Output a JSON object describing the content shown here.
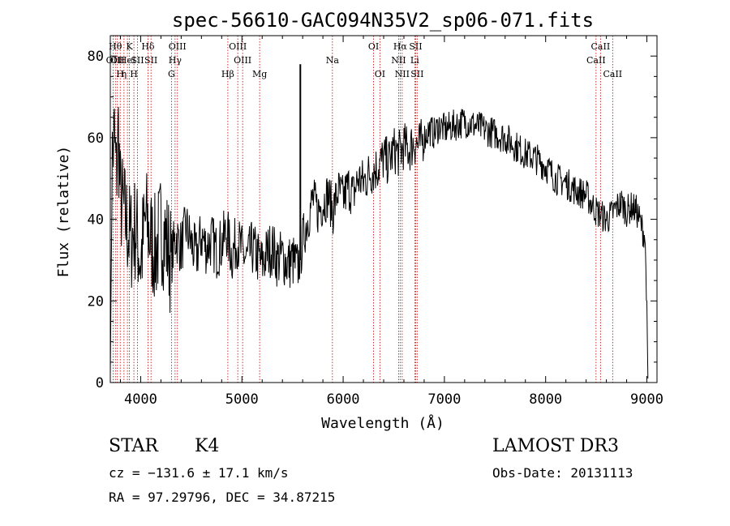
{
  "chart_data": {
    "type": "line",
    "title": "spec-56610-GAC094N35V2_sp06-071.fits",
    "xlabel": "Wavelength (Å)",
    "ylabel": "Flux (relative)",
    "xlim": [
      3700,
      9100
    ],
    "ylim": [
      0,
      85
    ],
    "xticks": [
      4000,
      5000,
      6000,
      7000,
      8000,
      9000
    ],
    "xtick_labels": [
      "4000",
      "5000",
      "6000",
      "7000",
      "8000",
      "9000"
    ],
    "yticks": [
      0,
      20,
      40,
      60,
      80
    ],
    "ytick_labels": [
      "0",
      "20",
      "40",
      "60",
      "80"
    ],
    "series": [
      {
        "name": "spectrum",
        "x": [
          3700,
          3720,
          3740,
          3760,
          3780,
          3800,
          3850,
          3900,
          3950,
          4000,
          4050,
          4100,
          4150,
          4200,
          4250,
          4300,
          4350,
          4400,
          4450,
          4500,
          4550,
          4600,
          4650,
          4700,
          4750,
          4800,
          4850,
          4900,
          4950,
          5000,
          5050,
          5100,
          5150,
          5200,
          5250,
          5300,
          5350,
          5400,
          5450,
          5500,
          5550,
          5600,
          5650,
          5700,
          5750,
          5800,
          5850,
          5900,
          5950,
          6000,
          6050,
          6100,
          6150,
          6200,
          6250,
          6300,
          6350,
          6400,
          6450,
          6500,
          6550,
          6600,
          6650,
          6700,
          6750,
          6800,
          6850,
          6900,
          6950,
          7000,
          7100,
          7200,
          7300,
          7400,
          7500,
          7600,
          7700,
          7800,
          7900,
          8000,
          8100,
          8200,
          8300,
          8400,
          8450,
          8500,
          8550,
          8600,
          8650,
          8700,
          8750,
          8800,
          8850,
          8900,
          8950,
          8980,
          9000,
          9010
        ],
        "values": [
          2,
          55,
          60,
          50,
          62,
          45,
          40,
          35,
          38,
          30,
          40,
          35,
          32,
          38,
          35,
          30,
          36,
          33,
          38,
          34,
          31,
          36,
          33,
          35,
          32,
          34,
          37,
          31,
          35,
          32,
          30,
          33,
          31,
          29,
          32,
          33,
          30,
          31,
          29,
          30,
          28,
          35,
          40,
          45,
          42,
          44,
          46,
          42,
          47,
          45,
          48,
          46,
          50,
          49,
          51,
          52,
          53,
          55,
          54,
          57,
          56,
          58,
          57,
          59,
          58,
          60,
          62,
          61,
          63,
          62,
          63,
          64,
          63,
          62,
          61,
          60,
          58,
          56,
          55,
          53,
          50,
          49,
          47,
          46,
          44,
          42,
          41,
          40,
          41,
          43,
          44,
          42,
          43,
          42,
          38,
          36,
          20,
          1
        ]
      }
    ],
    "annotations": [
      {
        "x": 5577,
        "y_top": 78,
        "y_bottom": 30,
        "label": ""
      }
    ],
    "line_markers": [
      {
        "wavelength": 3728,
        "label": "OII",
        "row": 2
      },
      {
        "wavelength": 3750,
        "label": "Hθ",
        "row": 1
      },
      {
        "wavelength": 3770,
        "label": "OII",
        "row": 2
      },
      {
        "wavelength": 3798,
        "label": "H",
        "row": 3
      },
      {
        "wavelength": 3835,
        "label": "η",
        "row": 3
      },
      {
        "wavelength": 3869,
        "label": "HeI",
        "row": 2
      },
      {
        "wavelength": 3889,
        "label": "K",
        "row": 1
      },
      {
        "wavelength": 3933,
        "label": "H",
        "row": 3
      },
      {
        "wavelength": 3968,
        "label": "SII",
        "row": 2
      },
      {
        "wavelength": 4072,
        "label": "Hδ",
        "row": 1
      },
      {
        "wavelength": 4102,
        "label": "SII",
        "row": 2
      },
      {
        "wavelength": 4304,
        "label": "G",
        "row": 3
      },
      {
        "wavelength": 4340,
        "label": "Hγ",
        "row": 2
      },
      {
        "wavelength": 4363,
        "label": "OIII",
        "row": 1
      },
      {
        "wavelength": 4861,
        "label": "Hβ",
        "row": 3
      },
      {
        "wavelength": 4959,
        "label": "OIII",
        "row": 1
      },
      {
        "wavelength": 5007,
        "label": "OIII",
        "row": 2
      },
      {
        "wavelength": 5175,
        "label": "Mg",
        "row": 3
      },
      {
        "wavelength": 5894,
        "label": "Na",
        "row": 2
      },
      {
        "wavelength": 6300,
        "label": "OI",
        "row": 1
      },
      {
        "wavelength": 6363,
        "label": "OI",
        "row": 3
      },
      {
        "wavelength": 6548,
        "label": "NII",
        "row": 2
      },
      {
        "wavelength": 6563,
        "label": "Hα",
        "row": 1
      },
      {
        "wavelength": 6583,
        "label": "NII",
        "row": 3
      },
      {
        "wavelength": 6707,
        "label": "Li",
        "row": 2
      },
      {
        "wavelength": 6716,
        "label": "SII",
        "row": 1
      },
      {
        "wavelength": 6731,
        "label": "SII",
        "row": 3
      },
      {
        "wavelength": 8498,
        "label": "CaII",
        "row": 2
      },
      {
        "wavelength": 8542,
        "label": "CaII",
        "row": 1
      },
      {
        "wavelength": 8662,
        "label": "CaII",
        "row": 3
      }
    ]
  },
  "info": {
    "object_class": "STAR",
    "subclass": "K4",
    "cz_text": "cz = −131.6 ± 17.1 km/s",
    "coords_text": "RA =  97.29796, DEC =  34.87215",
    "survey": "LAMOST DR3",
    "obs_date": "Obs-Date: 20131113"
  },
  "colors": {
    "axis": "#000000",
    "spectrum": "#000000",
    "line_marker": "#c00000",
    "background": "#ffffff"
  }
}
